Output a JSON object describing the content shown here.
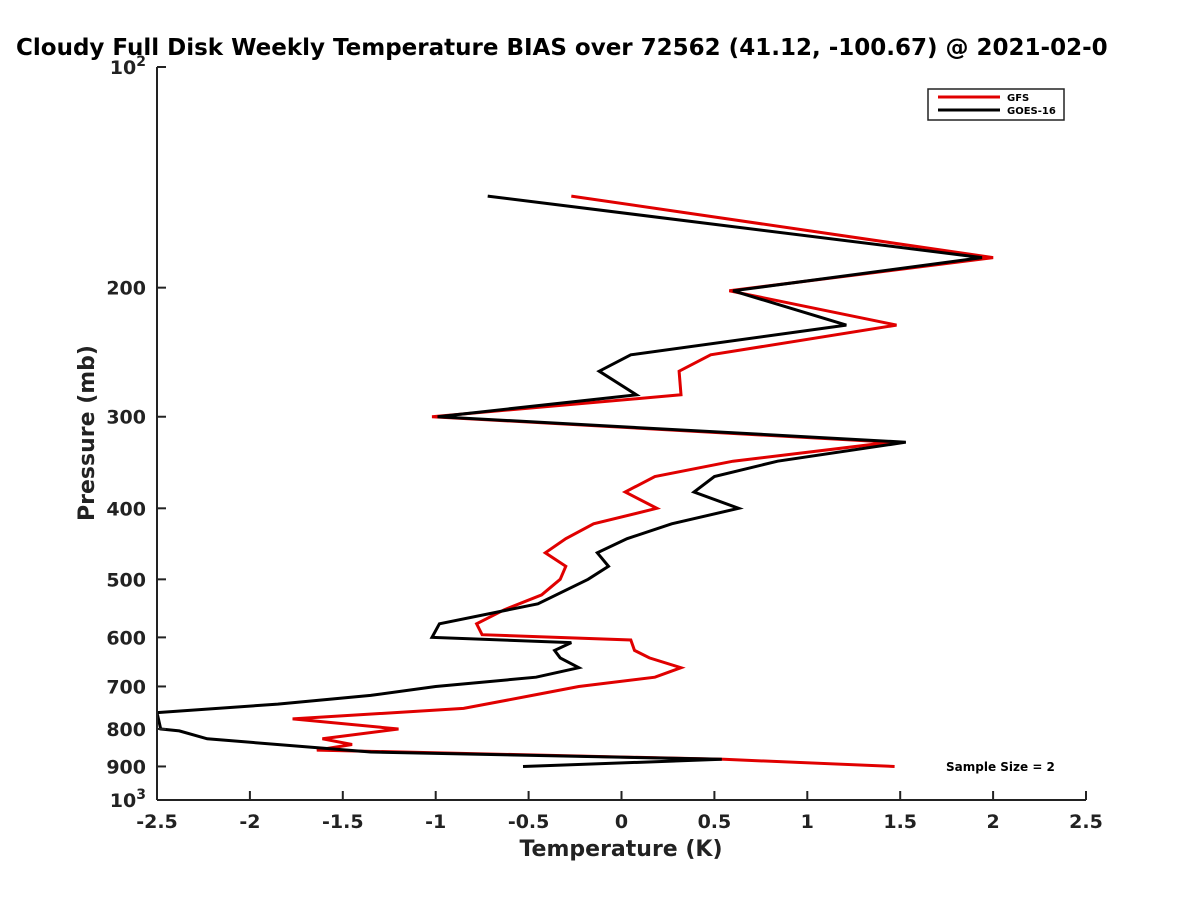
{
  "chart_data": {
    "type": "line",
    "title": "Cloudy Full Disk Weekly Temperature BIAS over 72562 (41.12, -100.67) @ 2021-02-0",
    "xlabel": "Temperature (K)",
    "ylabel": "Pressure (mb)",
    "xlim": [
      -2.5,
      2.5
    ],
    "ylim": [
      1000,
      100
    ],
    "yscale": "log",
    "x_ticks": [
      -2.5,
      -2,
      -1.5,
      -1,
      -0.5,
      0,
      0.5,
      1,
      1.5,
      2,
      2.5
    ],
    "x_tick_labels": [
      "-2.5",
      "-2",
      "-1.5",
      "-1",
      "-0.5",
      "0",
      "0.5",
      "1",
      "1.5",
      "2",
      "2.5"
    ],
    "y_ticks": [
      100,
      200,
      300,
      400,
      500,
      600,
      700,
      800,
      900,
      1000
    ],
    "y_tick_labels": [
      {
        "base": "10",
        "exp": "2"
      },
      {
        "base": "200"
      },
      {
        "base": "300"
      },
      {
        "base": "400"
      },
      {
        "base": "500"
      },
      {
        "base": "600"
      },
      {
        "base": "700"
      },
      {
        "base": "800"
      },
      {
        "base": "900"
      },
      {
        "base": "10",
        "exp": "3"
      }
    ],
    "grid": false,
    "legend_position": "top-right",
    "annotation": "Sample Size = 2",
    "series": [
      {
        "name": "GFS",
        "color": "#e00000",
        "points": [
          [
            -0.27,
            150
          ],
          [
            2.0,
            182
          ],
          [
            0.58,
            202
          ],
          [
            1.48,
            225
          ],
          [
            0.48,
            247
          ],
          [
            0.31,
            260
          ],
          [
            0.32,
            280
          ],
          [
            -1.02,
            300
          ],
          [
            1.45,
            325
          ],
          [
            0.6,
            345
          ],
          [
            0.18,
            362
          ],
          [
            0.02,
            380
          ],
          [
            0.19,
            400
          ],
          [
            -0.15,
            420
          ],
          [
            -0.3,
            440
          ],
          [
            -0.41,
            460
          ],
          [
            -0.3,
            480
          ],
          [
            -0.33,
            500
          ],
          [
            -0.43,
            525
          ],
          [
            -0.63,
            550
          ],
          [
            -0.78,
            575
          ],
          [
            -0.75,
            595
          ],
          [
            0.05,
            605
          ],
          [
            0.07,
            625
          ],
          [
            0.15,
            640
          ],
          [
            0.32,
            660
          ],
          [
            0.18,
            680
          ],
          [
            -0.23,
            700
          ],
          [
            -0.48,
            720
          ],
          [
            -0.85,
            750
          ],
          [
            -1.77,
            775
          ],
          [
            -1.2,
            800
          ],
          [
            -1.61,
            825
          ],
          [
            -1.45,
            840
          ],
          [
            -1.64,
            855
          ],
          [
            0.55,
            880
          ],
          [
            1.47,
            900
          ]
        ]
      },
      {
        "name": "GOES-16",
        "color": "#000000",
        "points": [
          [
            -0.72,
            150
          ],
          [
            1.94,
            182
          ],
          [
            0.6,
            202
          ],
          [
            1.21,
            225
          ],
          [
            0.05,
            247
          ],
          [
            -0.12,
            260
          ],
          [
            0.08,
            280
          ],
          [
            -0.99,
            300
          ],
          [
            1.53,
            325
          ],
          [
            0.84,
            345
          ],
          [
            0.5,
            362
          ],
          [
            0.39,
            380
          ],
          [
            0.63,
            400
          ],
          [
            0.27,
            420
          ],
          [
            0.03,
            440
          ],
          [
            -0.13,
            460
          ],
          [
            -0.07,
            480
          ],
          [
            -0.18,
            500
          ],
          [
            -0.45,
            540
          ],
          [
            -0.98,
            575
          ],
          [
            -1.02,
            600
          ],
          [
            -0.27,
            610
          ],
          [
            -0.36,
            625
          ],
          [
            -0.33,
            640
          ],
          [
            -0.23,
            660
          ],
          [
            -0.46,
            680
          ],
          [
            -1.0,
            700
          ],
          [
            -1.35,
            720
          ],
          [
            -1.85,
            740
          ],
          [
            -2.5,
            760
          ],
          [
            -2.48,
            800
          ],
          [
            -2.38,
            805
          ],
          [
            -2.23,
            825
          ],
          [
            -1.35,
            860
          ],
          [
            0.54,
            880
          ],
          [
            -0.53,
            900
          ]
        ]
      }
    ]
  }
}
